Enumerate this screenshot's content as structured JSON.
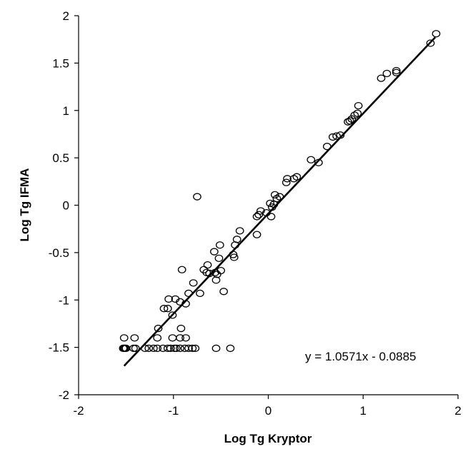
{
  "chart_data": {
    "type": "scatter",
    "xlabel": "Log Tg Kryptor",
    "ylabel": "Log Tg IFMA",
    "xlim": [
      -2,
      2
    ],
    "ylim": [
      -2,
      2
    ],
    "xticks": [
      "-2",
      "-1",
      "0",
      "1",
      "2"
    ],
    "yticks": [
      "-2",
      "-1.5",
      "-1",
      "-0.5",
      "0",
      "0.5",
      "1",
      "1.5",
      "2"
    ],
    "grid": false,
    "legend": "none",
    "marker": "open-circle",
    "annotation": "y = 1.0571x - 0.0885",
    "trendline": {
      "slope": 1.0571,
      "intercept": -0.0885,
      "x_range": [
        -1.52,
        1.76
      ]
    },
    "points": [
      [
        1.77,
        1.81
      ],
      [
        1.71,
        1.71
      ],
      [
        1.35,
        1.42
      ],
      [
        1.35,
        1.4
      ],
      [
        1.25,
        1.39
      ],
      [
        1.19,
        1.34
      ],
      [
        0.95,
        1.05
      ],
      [
        0.94,
        0.97
      ],
      [
        0.91,
        0.95
      ],
      [
        0.88,
        0.91
      ],
      [
        0.86,
        0.89
      ],
      [
        0.84,
        0.88
      ],
      [
        0.76,
        0.74
      ],
      [
        0.72,
        0.73
      ],
      [
        0.68,
        0.72
      ],
      [
        0.62,
        0.62
      ],
      [
        0.53,
        0.45
      ],
      [
        0.45,
        0.48
      ],
      [
        0.3,
        0.3
      ],
      [
        0.27,
        0.28
      ],
      [
        0.2,
        0.28
      ],
      [
        0.19,
        0.24
      ],
      [
        0.12,
        0.09
      ],
      [
        0.09,
        0.07
      ],
      [
        0.07,
        0.11
      ],
      [
        0.06,
        0.01
      ],
      [
        0.04,
        -0.02
      ],
      [
        0.02,
        0.02
      ],
      [
        0.03,
        -0.12
      ],
      [
        -0.02,
        -0.08
      ],
      [
        -0.08,
        -0.06
      ],
      [
        -0.1,
        -0.1
      ],
      [
        -0.12,
        -0.12
      ],
      [
        -0.12,
        -0.31
      ],
      [
        -0.3,
        -0.27
      ],
      [
        -0.33,
        -0.36
      ],
      [
        -0.35,
        -0.42
      ],
      [
        -0.36,
        -0.55
      ],
      [
        -0.37,
        -0.52
      ],
      [
        -0.47,
        -0.91
      ],
      [
        -0.5,
        -0.69
      ],
      [
        -0.51,
        -0.42
      ],
      [
        -0.52,
        -0.56
      ],
      [
        -0.54,
        -0.73
      ],
      [
        -0.55,
        -0.79
      ],
      [
        -0.56,
        -0.71
      ],
      [
        -0.57,
        -0.49
      ],
      [
        -0.62,
        -0.72
      ],
      [
        -0.64,
        -0.63
      ],
      [
        -0.65,
        -0.71
      ],
      [
        -0.68,
        -0.68
      ],
      [
        -0.72,
        -0.93
      ],
      [
        -0.75,
        0.09
      ],
      [
        -0.79,
        -0.82
      ],
      [
        -0.84,
        -0.93
      ],
      [
        -0.87,
        -1.04
      ],
      [
        -0.91,
        -0.68
      ],
      [
        -0.93,
        -1.02
      ],
      [
        -0.98,
        -0.99
      ],
      [
        -1.01,
        -1.16
      ],
      [
        -1.05,
        -0.99
      ],
      [
        -1.06,
        -1.09
      ],
      [
        -1.1,
        -1.09
      ],
      [
        -1.16,
        -1.3
      ],
      [
        -1.17,
        -1.4
      ],
      [
        -1.52,
        -1.4
      ],
      [
        -1.41,
        -1.4
      ],
      [
        -1.01,
        -1.4
      ],
      [
        -0.93,
        -1.4
      ],
      [
        -0.87,
        -1.4
      ],
      [
        -0.92,
        -1.3
      ],
      [
        -1.53,
        -1.51
      ],
      [
        -1.52,
        -1.51
      ],
      [
        -1.51,
        -1.51
      ],
      [
        -1.5,
        -1.51
      ],
      [
        -1.42,
        -1.51
      ],
      [
        -1.4,
        -1.51
      ],
      [
        -1.3,
        -1.51
      ],
      [
        -1.26,
        -1.51
      ],
      [
        -1.21,
        -1.51
      ],
      [
        -1.17,
        -1.51
      ],
      [
        -1.11,
        -1.51
      ],
      [
        -1.06,
        -1.51
      ],
      [
        -1.03,
        -1.51
      ],
      [
        -0.99,
        -1.51
      ],
      [
        -0.97,
        -1.51
      ],
      [
        -0.93,
        -1.51
      ],
      [
        -0.88,
        -1.51
      ],
      [
        -0.84,
        -1.51
      ],
      [
        -0.8,
        -1.51
      ],
      [
        -0.77,
        -1.51
      ],
      [
        -0.55,
        -1.51
      ],
      [
        -0.4,
        -1.51
      ]
    ]
  }
}
